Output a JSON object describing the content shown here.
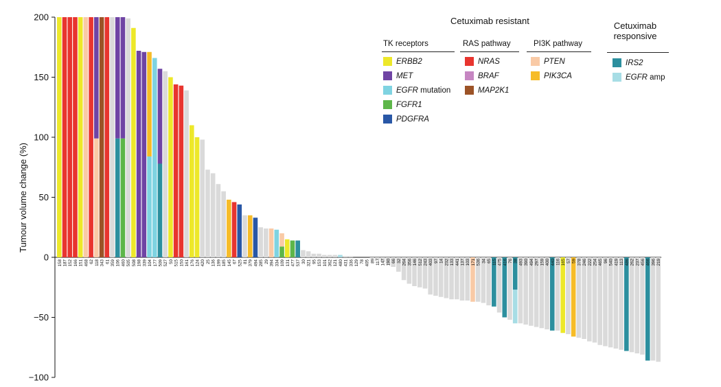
{
  "chart_data": {
    "type": "bar",
    "ylabel": "Tumour volume change (%)",
    "ylim": [
      -100,
      200
    ],
    "yticks": [
      200,
      150,
      100,
      50,
      0,
      -50,
      -100
    ],
    "grid": false,
    "legend_placement": "top-right",
    "colors": {
      "grey": "#dadada",
      "ERBB2": "#ede82a",
      "MET": "#6f44a4",
      "EGFR_mutation": "#7fd3e1",
      "FGFR1": "#5db649",
      "PDGFRA": "#2957a6",
      "NRAS": "#e8352f",
      "BRAF": "#c686c2",
      "MAP2K1": "#9c5327",
      "PTEN": "#f9caa6",
      "PIK3CA": "#f6bc28",
      "IRS2": "#2c8f9e",
      "EGFR_amp": "#a7dde5"
    },
    "series": [
      {
        "id": "s158",
        "category": "158",
        "value": 200,
        "color": "ERBB2"
      },
      {
        "id": "s187",
        "category": "187",
        "value": 200,
        "color": "NRAS"
      },
      {
        "id": "s152",
        "category": "152",
        "value": 200,
        "color": "NRAS"
      },
      {
        "id": "s166",
        "category": "166",
        "value": 200,
        "color": "NRAS"
      },
      {
        "id": "s151",
        "category": "151",
        "value": 200,
        "color": "ERBB2"
      },
      {
        "id": "s468",
        "category": "468",
        "value": 200,
        "color": "PTEN"
      },
      {
        "id": "s62",
        "category": "62",
        "value": 200,
        "color": "NRAS"
      },
      {
        "id": "s118",
        "category": "118",
        "value": 200,
        "segments": [
          {
            "value": 99,
            "color": "PTEN"
          },
          {
            "value": 101,
            "color": "MET"
          }
        ]
      },
      {
        "id": "s343",
        "category": "343",
        "value": 200,
        "color": "MAP2K1"
      },
      {
        "id": "s61",
        "category": "61",
        "value": 200,
        "color": "NRAS"
      },
      {
        "id": "s359",
        "category": "359",
        "value": 200,
        "color": "grey"
      },
      {
        "id": "s106",
        "category": "106",
        "value": 200,
        "segments": [
          {
            "value": 99,
            "color": "IRS2"
          },
          {
            "value": 101,
            "color": "MET"
          }
        ]
      },
      {
        "id": "s460",
        "category": "460",
        "value": 200,
        "segments": [
          {
            "value": 99,
            "color": "FGFR1"
          },
          {
            "value": 101,
            "color": "MET"
          }
        ]
      },
      {
        "id": "s505",
        "category": "505",
        "value": 199,
        "color": "grey"
      },
      {
        "id": "s508",
        "category": "508",
        "value": 191,
        "color": "ERBB2"
      },
      {
        "id": "s198",
        "category": "198",
        "value": 172,
        "color": "MET"
      },
      {
        "id": "s339",
        "category": "339",
        "value": 171,
        "color": "MET"
      },
      {
        "id": "s104",
        "category": "104",
        "value": 171,
        "segments": [
          {
            "value": 84,
            "color": "EGFR_mutation"
          },
          {
            "value": 87,
            "color": "PIK3CA"
          }
        ]
      },
      {
        "id": "s177",
        "category": "177",
        "value": 166,
        "color": "EGFR_mutation"
      },
      {
        "id": "s509",
        "category": "509",
        "value": 157,
        "segments": [
          {
            "value": 78,
            "color": "IRS2"
          },
          {
            "value": 79,
            "color": "MET"
          }
        ]
      },
      {
        "id": "s527",
        "category": "527",
        "value": 155,
        "color": "grey"
      },
      {
        "id": "s50",
        "category": "50",
        "value": 150,
        "color": "ERBB2"
      },
      {
        "id": "s515",
        "category": "515",
        "value": 144,
        "color": "NRAS"
      },
      {
        "id": "s150",
        "category": "150",
        "value": 143,
        "color": "NRAS"
      },
      {
        "id": "s161",
        "category": "161",
        "value": 139,
        "color": "grey"
      },
      {
        "id": "s176",
        "category": "176",
        "value": 110,
        "color": "ERBB2"
      },
      {
        "id": "s124",
        "category": "124",
        "value": 100,
        "color": "ERBB2"
      },
      {
        "id": "s420",
        "category": "420",
        "value": 98,
        "color": "grey"
      },
      {
        "id": "s25",
        "category": "25",
        "value": 73,
        "color": "grey"
      },
      {
        "id": "s136",
        "category": "136",
        "value": 70,
        "color": "grey"
      },
      {
        "id": "s199",
        "category": "199",
        "value": 61,
        "color": "grey"
      },
      {
        "id": "s185",
        "category": "185",
        "value": 55,
        "color": "grey"
      },
      {
        "id": "s145",
        "category": "145",
        "value": 48,
        "color": "PIK3CA"
      },
      {
        "id": "s67",
        "category": "67",
        "value": 46,
        "color": "NRAS"
      },
      {
        "id": "s525",
        "category": "525",
        "value": 44,
        "color": "PDGFRA"
      },
      {
        "id": "s81",
        "category": "81",
        "value": 35,
        "color": "grey"
      },
      {
        "id": "s379",
        "category": "379",
        "value": 35,
        "color": "PIK3CA"
      },
      {
        "id": "s494",
        "category": "494",
        "value": 33,
        "color": "PDGFRA"
      },
      {
        "id": "s285",
        "category": "285",
        "value": 25,
        "color": "grey"
      },
      {
        "id": "s29",
        "category": "29",
        "value": 24,
        "color": "grey"
      },
      {
        "id": "s394",
        "category": "394",
        "value": 24,
        "color": "PTEN"
      },
      {
        "id": "s334",
        "category": "334",
        "value": 23,
        "color": "EGFR_mutation"
      },
      {
        "id": "s109",
        "category": "109",
        "value": 20,
        "segments": [
          {
            "value": 9,
            "color": "FGFR1"
          },
          {
            "value": 11,
            "color": "PTEN"
          }
        ]
      },
      {
        "id": "s131",
        "category": "131",
        "value": 15,
        "color": "ERBB2"
      },
      {
        "id": "s477",
        "category": "477",
        "value": 14,
        "color": "FGFR1"
      },
      {
        "id": "s537",
        "category": "537",
        "value": 14,
        "color": "IRS2"
      },
      {
        "id": "s30",
        "category": "30",
        "value": 6,
        "color": "grey"
      },
      {
        "id": "s321",
        "category": "321",
        "value": 5,
        "color": "grey"
      },
      {
        "id": "s95",
        "category": "95",
        "value": 3,
        "color": "grey"
      },
      {
        "id": "s153",
        "category": "153",
        "value": 3,
        "color": "grey"
      },
      {
        "id": "s101",
        "category": "101",
        "value": 2,
        "color": "grey"
      },
      {
        "id": "s362",
        "category": "362",
        "value": 2,
        "color": "grey"
      },
      {
        "id": "s121",
        "category": "121",
        "value": 2,
        "color": "grey"
      },
      {
        "id": "s480",
        "category": "480",
        "value": 2,
        "color": "EGFR_amp"
      },
      {
        "id": "s431",
        "category": "431",
        "value": 1,
        "color": "grey"
      },
      {
        "id": "s336",
        "category": "336",
        "value": 1,
        "color": "grey"
      },
      {
        "id": "s129",
        "category": "129",
        "value": 0,
        "color": "grey"
      },
      {
        "id": "s78",
        "category": "78",
        "value": 0,
        "color": "grey"
      },
      {
        "id": "s405",
        "category": "405",
        "value": 0,
        "color": "grey"
      },
      {
        "id": "s89",
        "category": "89",
        "value": -1,
        "color": "grey"
      },
      {
        "id": "s117",
        "category": "117",
        "value": -2,
        "color": "grey"
      },
      {
        "id": "s147",
        "category": "147",
        "value": -4,
        "color": "grey"
      },
      {
        "id": "s190",
        "category": "190",
        "value": -6,
        "color": "grey"
      },
      {
        "id": "s66",
        "category": "66",
        "value": -8,
        "color": "grey"
      },
      {
        "id": "s32",
        "category": "32",
        "value": -12,
        "color": "grey"
      },
      {
        "id": "s264",
        "category": "264",
        "value": -19,
        "color": "grey"
      },
      {
        "id": "s356",
        "category": "356",
        "value": -22,
        "color": "grey"
      },
      {
        "id": "s146",
        "category": "146",
        "value": -24,
        "color": "grey"
      },
      {
        "id": "s512",
        "category": "512",
        "value": -25,
        "color": "grey"
      },
      {
        "id": "s243",
        "category": "243",
        "value": -26,
        "color": "grey"
      },
      {
        "id": "s403",
        "category": "403",
        "value": -31,
        "color": "grey"
      },
      {
        "id": "s97",
        "category": "97",
        "value": -32,
        "color": "grey"
      },
      {
        "id": "s14",
        "category": "14",
        "value": -33,
        "color": "grey"
      },
      {
        "id": "s232",
        "category": "232",
        "value": -34,
        "color": "grey"
      },
      {
        "id": "s133",
        "category": "133",
        "value": -35,
        "color": "grey"
      },
      {
        "id": "s441",
        "category": "441",
        "value": -35,
        "color": "grey"
      },
      {
        "id": "s137",
        "category": "137",
        "value": -36,
        "color": "grey"
      },
      {
        "id": "s103",
        "category": "103",
        "value": -36,
        "color": "grey"
      },
      {
        "id": "s171",
        "category": "171",
        "value": -37,
        "color": "PTEN"
      },
      {
        "id": "s536",
        "category": "536",
        "value": -37,
        "color": "grey"
      },
      {
        "id": "s34",
        "category": "34",
        "value": -38,
        "color": "grey"
      },
      {
        "id": "s65",
        "category": "65",
        "value": -40,
        "color": "grey"
      },
      {
        "id": "s115",
        "category": "115",
        "value": -41,
        "color": "IRS2"
      },
      {
        "id": "s475",
        "category": "475",
        "value": -46,
        "color": "grey"
      },
      {
        "id": "s416",
        "category": "416",
        "value": -50,
        "color": "IRS2"
      },
      {
        "id": "s76",
        "category": "76",
        "value": -52,
        "color": "grey"
      },
      {
        "id": "s38",
        "category": "38",
        "value": -55,
        "segments": [
          {
            "value": -27,
            "color": "IRS2"
          },
          {
            "value": -28,
            "color": "EGFR_amp"
          }
        ]
      },
      {
        "id": "s493",
        "category": "493",
        "value": -55,
        "color": "grey"
      },
      {
        "id": "s390",
        "category": "390",
        "value": -56,
        "color": "grey"
      },
      {
        "id": "s494b",
        "category": "494",
        "value": -57,
        "color": "grey"
      },
      {
        "id": "s297",
        "category": "297",
        "value": -58,
        "color": "grey"
      },
      {
        "id": "s159",
        "category": "159",
        "value": -59,
        "color": "grey"
      },
      {
        "id": "s400",
        "category": "400",
        "value": -60,
        "color": "grey"
      },
      {
        "id": "s440",
        "category": "440",
        "value": -61,
        "color": "IRS2"
      },
      {
        "id": "s116",
        "category": "116",
        "value": -61,
        "color": "grey"
      },
      {
        "id": "s165",
        "category": "165",
        "value": -63,
        "color": "ERBB2"
      },
      {
        "id": "s57",
        "category": "57",
        "value": -64,
        "color": "grey"
      },
      {
        "id": "s59",
        "category": "59",
        "value": -66,
        "color": "PIK3CA"
      },
      {
        "id": "s378",
        "category": "378",
        "value": -67,
        "color": "grey"
      },
      {
        "id": "s246",
        "category": "246",
        "value": -68,
        "color": "grey"
      },
      {
        "id": "s222",
        "category": "222",
        "value": -70,
        "color": "grey"
      },
      {
        "id": "s254",
        "category": "254",
        "value": -71,
        "color": "grey"
      },
      {
        "id": "s465",
        "category": "465",
        "value": -73,
        "color": "grey"
      },
      {
        "id": "s96",
        "category": "96",
        "value": -74,
        "color": "grey"
      },
      {
        "id": "s540",
        "category": "540",
        "value": -75,
        "color": "grey"
      },
      {
        "id": "s419",
        "category": "419",
        "value": -76,
        "color": "grey"
      },
      {
        "id": "s113",
        "category": "113",
        "value": -77,
        "color": "grey"
      },
      {
        "id": "s486",
        "category": "486",
        "value": -78,
        "color": "IRS2"
      },
      {
        "id": "s262",
        "category": "262",
        "value": -79,
        "color": "grey"
      },
      {
        "id": "s237",
        "category": "237",
        "value": -80,
        "color": "grey"
      },
      {
        "id": "s456",
        "category": "456",
        "value": -81,
        "color": "grey"
      },
      {
        "id": "s466",
        "category": "466",
        "value": -86,
        "color": "IRS2"
      },
      {
        "id": "s396",
        "category": "396",
        "value": -86,
        "color": "grey"
      },
      {
        "id": "s219",
        "category": "219",
        "value": -87,
        "color": "grey"
      }
    ]
  },
  "legend": {
    "resistant_title": "Cetuximab resistant",
    "responsive_title": "Cetuximab responsive",
    "groups": {
      "tk": {
        "title": "TK receptors",
        "items": [
          {
            "label": "ERBB2",
            "suffix": "",
            "color": "ERBB2"
          },
          {
            "label": "MET",
            "suffix": "",
            "color": "MET"
          },
          {
            "label": "EGFR",
            "suffix": " mutation",
            "color": "EGFR_mutation"
          },
          {
            "label": "FGFR1",
            "suffix": "",
            "color": "FGFR1"
          },
          {
            "label": "PDGFRA",
            "suffix": "",
            "color": "PDGFRA"
          }
        ]
      },
      "ras": {
        "title": "RAS pathway",
        "items": [
          {
            "label": "NRAS",
            "suffix": "",
            "color": "NRAS"
          },
          {
            "label": "BRAF",
            "suffix": "",
            "color": "BRAF"
          },
          {
            "label": "MAP2K1",
            "suffix": "",
            "color": "MAP2K1"
          }
        ]
      },
      "pi3k": {
        "title": "PI3K pathway",
        "items": [
          {
            "label": "PTEN",
            "suffix": "",
            "color": "PTEN"
          },
          {
            "label": "PIK3CA",
            "suffix": "",
            "color": "PIK3CA"
          }
        ]
      },
      "resp": {
        "title": "",
        "items": [
          {
            "label": "IRS2",
            "suffix": "",
            "color": "IRS2"
          },
          {
            "label": "EGFR",
            "suffix": " amp",
            "color": "EGFR_amp"
          }
        ]
      }
    }
  }
}
